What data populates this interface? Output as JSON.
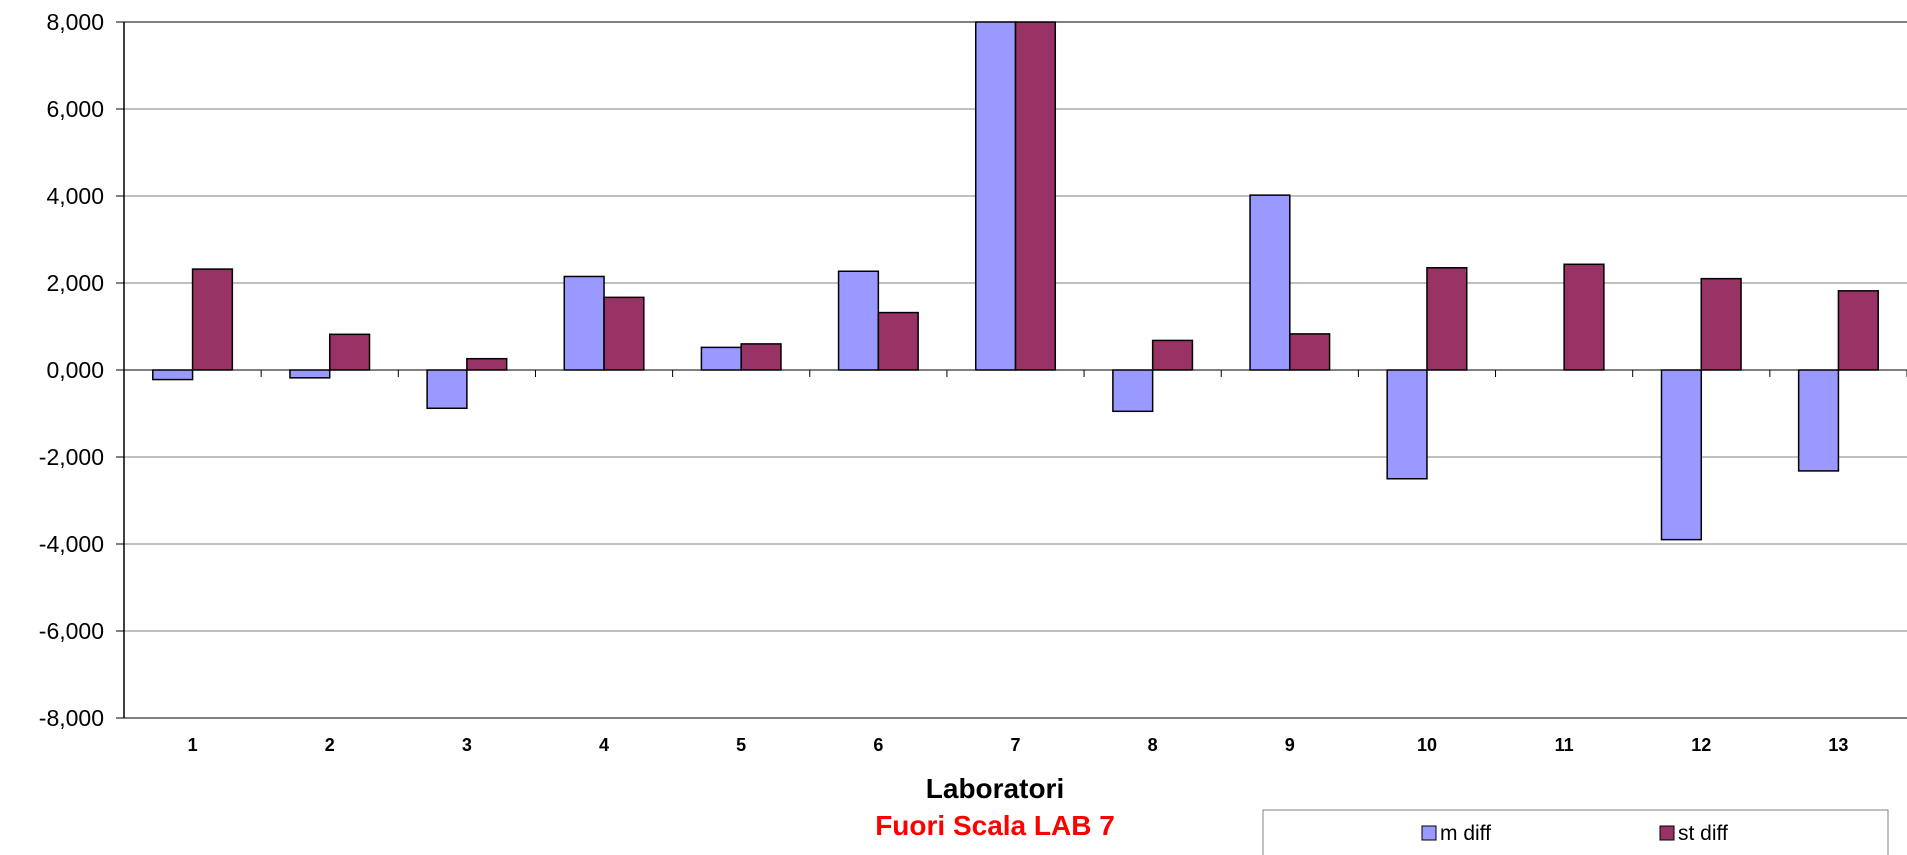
{
  "chart_data": {
    "type": "bar",
    "categories": [
      "1",
      "2",
      "3",
      "4",
      "5",
      "6",
      "7",
      "8",
      "9",
      "10",
      "11",
      "12",
      "13"
    ],
    "series": [
      {
        "name": "m diff",
        "color": "#9999ff",
        "values": [
          -0.22,
          -0.18,
          -0.88,
          2.15,
          0.52,
          2.27,
          8.0,
          -0.95,
          4.02,
          -2.5,
          0.0,
          -3.9,
          -2.32
        ]
      },
      {
        "name": "st diff",
        "color": "#993366",
        "values": [
          2.32,
          0.82,
          0.26,
          1.67,
          0.6,
          1.32,
          8.0,
          0.68,
          0.83,
          2.35,
          2.43,
          2.1,
          1.82
        ]
      }
    ],
    "yticks": [
      "8,000",
      "6,000",
      "4,000",
      "2,000",
      "0,000",
      "-2,000",
      "-4,000",
      "-6,000",
      "-8,000"
    ],
    "ylim": [
      -8,
      8
    ],
    "ystep": 2,
    "xlabel": "Laboratori",
    "annotation": {
      "text": "Fuori Scala LAB 7",
      "color": "#ff0000"
    },
    "grid": true,
    "legend": "bottom-right"
  }
}
